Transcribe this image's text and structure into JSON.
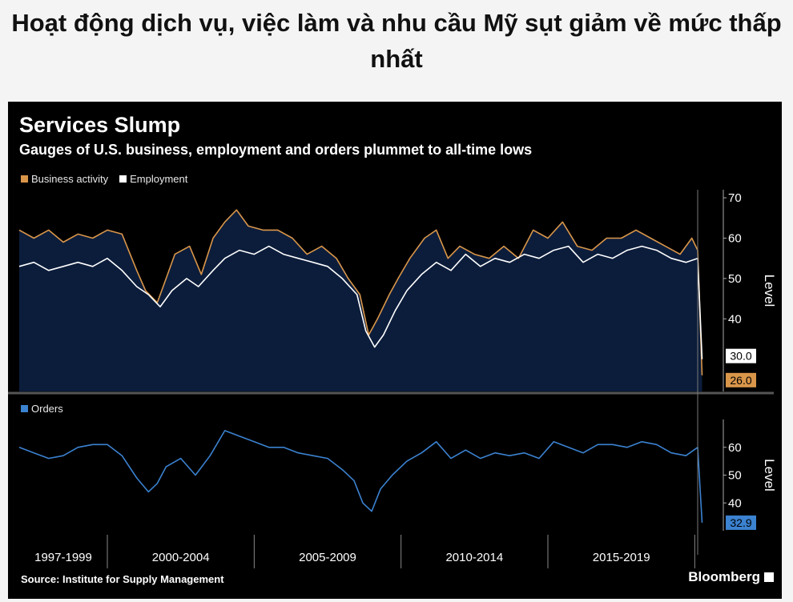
{
  "headline": "Hoạt động dịch vụ, việc làm và nhu cầu Mỹ sụt giảm về mức thấp nhất",
  "source": "Source: Institute for Supply Management",
  "brand": "Bloomberg",
  "colors": {
    "panel_bg": "#000000",
    "area_fill": "#0c1d3b",
    "business": "#d9964a",
    "employment": "#ffffff",
    "orders": "#3b82d0"
  },
  "chart_data": [
    {
      "type": "line",
      "title": "Services Slump",
      "subtitle": "Gauges of U.S. business, employment and orders plummet to all-time lows",
      "ylabel": "Level",
      "ylim": [
        22,
        72
      ],
      "yticks": [
        40,
        50,
        60,
        70
      ],
      "grid": false,
      "legend_position": "top-left",
      "series": [
        {
          "name": "Business activity",
          "last_value_label": "26.0",
          "points": [
            [
              1997.0,
              62
            ],
            [
              1997.5,
              60
            ],
            [
              1998.0,
              62
            ],
            [
              1998.5,
              59
            ],
            [
              1999.0,
              61
            ],
            [
              1999.5,
              60
            ],
            [
              2000.0,
              62
            ],
            [
              2000.5,
              61
            ],
            [
              2001.0,
              52
            ],
            [
              2001.3,
              47
            ],
            [
              2001.7,
              44
            ],
            [
              2001.9,
              48
            ],
            [
              2002.3,
              56
            ],
            [
              2002.8,
              58
            ],
            [
              2003.2,
              51
            ],
            [
              2003.6,
              60
            ],
            [
              2004.0,
              64
            ],
            [
              2004.4,
              67
            ],
            [
              2004.8,
              63
            ],
            [
              2005.3,
              62
            ],
            [
              2005.8,
              62
            ],
            [
              2006.3,
              60
            ],
            [
              2006.8,
              56
            ],
            [
              2007.3,
              58
            ],
            [
              2007.8,
              55
            ],
            [
              2008.2,
              50
            ],
            [
              2008.6,
              46
            ],
            [
              2008.9,
              36
            ],
            [
              2009.2,
              40
            ],
            [
              2009.6,
              46
            ],
            [
              2009.9,
              50
            ],
            [
              2010.3,
              55
            ],
            [
              2010.8,
              60
            ],
            [
              2011.2,
              62
            ],
            [
              2011.6,
              55
            ],
            [
              2012.0,
              58
            ],
            [
              2012.5,
              56
            ],
            [
              2013.0,
              55
            ],
            [
              2013.5,
              58
            ],
            [
              2014.0,
              55
            ],
            [
              2014.5,
              62
            ],
            [
              2015.0,
              60
            ],
            [
              2015.5,
              64
            ],
            [
              2016.0,
              58
            ],
            [
              2016.5,
              57
            ],
            [
              2017.0,
              60
            ],
            [
              2017.5,
              60
            ],
            [
              2018.0,
              62
            ],
            [
              2018.5,
              60
            ],
            [
              2019.0,
              58
            ],
            [
              2019.5,
              56
            ],
            [
              2019.9,
              60
            ],
            [
              2020.1,
              57
            ],
            [
              2020.25,
              26
            ]
          ]
        },
        {
          "name": "Employment",
          "last_value_label": "30.0",
          "points": [
            [
              1997.0,
              53
            ],
            [
              1997.5,
              54
            ],
            [
              1998.0,
              52
            ],
            [
              1998.5,
              53
            ],
            [
              1999.0,
              54
            ],
            [
              1999.5,
              53
            ],
            [
              2000.0,
              55
            ],
            [
              2000.5,
              52
            ],
            [
              2001.0,
              48
            ],
            [
              2001.4,
              46
            ],
            [
              2001.8,
              43
            ],
            [
              2002.2,
              47
            ],
            [
              2002.7,
              50
            ],
            [
              2003.1,
              48
            ],
            [
              2003.6,
              52
            ],
            [
              2004.0,
              55
            ],
            [
              2004.5,
              57
            ],
            [
              2005.0,
              56
            ],
            [
              2005.5,
              58
            ],
            [
              2006.0,
              56
            ],
            [
              2006.5,
              55
            ],
            [
              2007.0,
              54
            ],
            [
              2007.5,
              53
            ],
            [
              2008.0,
              50
            ],
            [
              2008.5,
              46
            ],
            [
              2008.8,
              37
            ],
            [
              2009.1,
              33
            ],
            [
              2009.4,
              36
            ],
            [
              2009.8,
              42
            ],
            [
              2010.2,
              47
            ],
            [
              2010.7,
              51
            ],
            [
              2011.2,
              54
            ],
            [
              2011.7,
              52
            ],
            [
              2012.2,
              56
            ],
            [
              2012.7,
              53
            ],
            [
              2013.2,
              55
            ],
            [
              2013.7,
              54
            ],
            [
              2014.2,
              56
            ],
            [
              2014.7,
              55
            ],
            [
              2015.2,
              57
            ],
            [
              2015.7,
              58
            ],
            [
              2016.2,
              54
            ],
            [
              2016.7,
              56
            ],
            [
              2017.2,
              55
            ],
            [
              2017.7,
              57
            ],
            [
              2018.2,
              58
            ],
            [
              2018.7,
              57
            ],
            [
              2019.2,
              55
            ],
            [
              2019.7,
              54
            ],
            [
              2020.1,
              55
            ],
            [
              2020.25,
              30
            ]
          ]
        }
      ]
    },
    {
      "type": "line",
      "ylabel": "Level",
      "ylim": [
        30,
        70
      ],
      "yticks": [
        40,
        50,
        60
      ],
      "grid": false,
      "legend_position": "top-left",
      "xticks": [
        "1997-1999",
        "2000-2004",
        "2005-2009",
        "2010-2014",
        "2015-2019"
      ],
      "series": [
        {
          "name": "Orders",
          "last_value_label": "32.9",
          "points": [
            [
              1997.0,
              60
            ],
            [
              1997.5,
              58
            ],
            [
              1998.0,
              56
            ],
            [
              1998.5,
              57
            ],
            [
              1999.0,
              60
            ],
            [
              1999.5,
              61
            ],
            [
              2000.0,
              61
            ],
            [
              2000.5,
              57
            ],
            [
              2001.0,
              49
            ],
            [
              2001.4,
              44
            ],
            [
              2001.7,
              47
            ],
            [
              2002.0,
              53
            ],
            [
              2002.5,
              56
            ],
            [
              2003.0,
              50
            ],
            [
              2003.5,
              57
            ],
            [
              2004.0,
              66
            ],
            [
              2004.5,
              64
            ],
            [
              2005.0,
              62
            ],
            [
              2005.5,
              60
            ],
            [
              2006.0,
              60
            ],
            [
              2006.5,
              58
            ],
            [
              2007.0,
              57
            ],
            [
              2007.5,
              56
            ],
            [
              2008.0,
              52
            ],
            [
              2008.4,
              48
            ],
            [
              2008.7,
              40
            ],
            [
              2009.0,
              37
            ],
            [
              2009.3,
              45
            ],
            [
              2009.7,
              50
            ],
            [
              2010.2,
              55
            ],
            [
              2010.7,
              58
            ],
            [
              2011.2,
              62
            ],
            [
              2011.7,
              56
            ],
            [
              2012.2,
              59
            ],
            [
              2012.7,
              56
            ],
            [
              2013.2,
              58
            ],
            [
              2013.7,
              57
            ],
            [
              2014.2,
              58
            ],
            [
              2014.7,
              56
            ],
            [
              2015.2,
              62
            ],
            [
              2015.7,
              60
            ],
            [
              2016.2,
              58
            ],
            [
              2016.7,
              61
            ],
            [
              2017.2,
              61
            ],
            [
              2017.7,
              60
            ],
            [
              2018.2,
              62
            ],
            [
              2018.7,
              61
            ],
            [
              2019.2,
              58
            ],
            [
              2019.7,
              57
            ],
            [
              2020.1,
              60
            ],
            [
              2020.25,
              32.9
            ]
          ]
        }
      ]
    }
  ]
}
